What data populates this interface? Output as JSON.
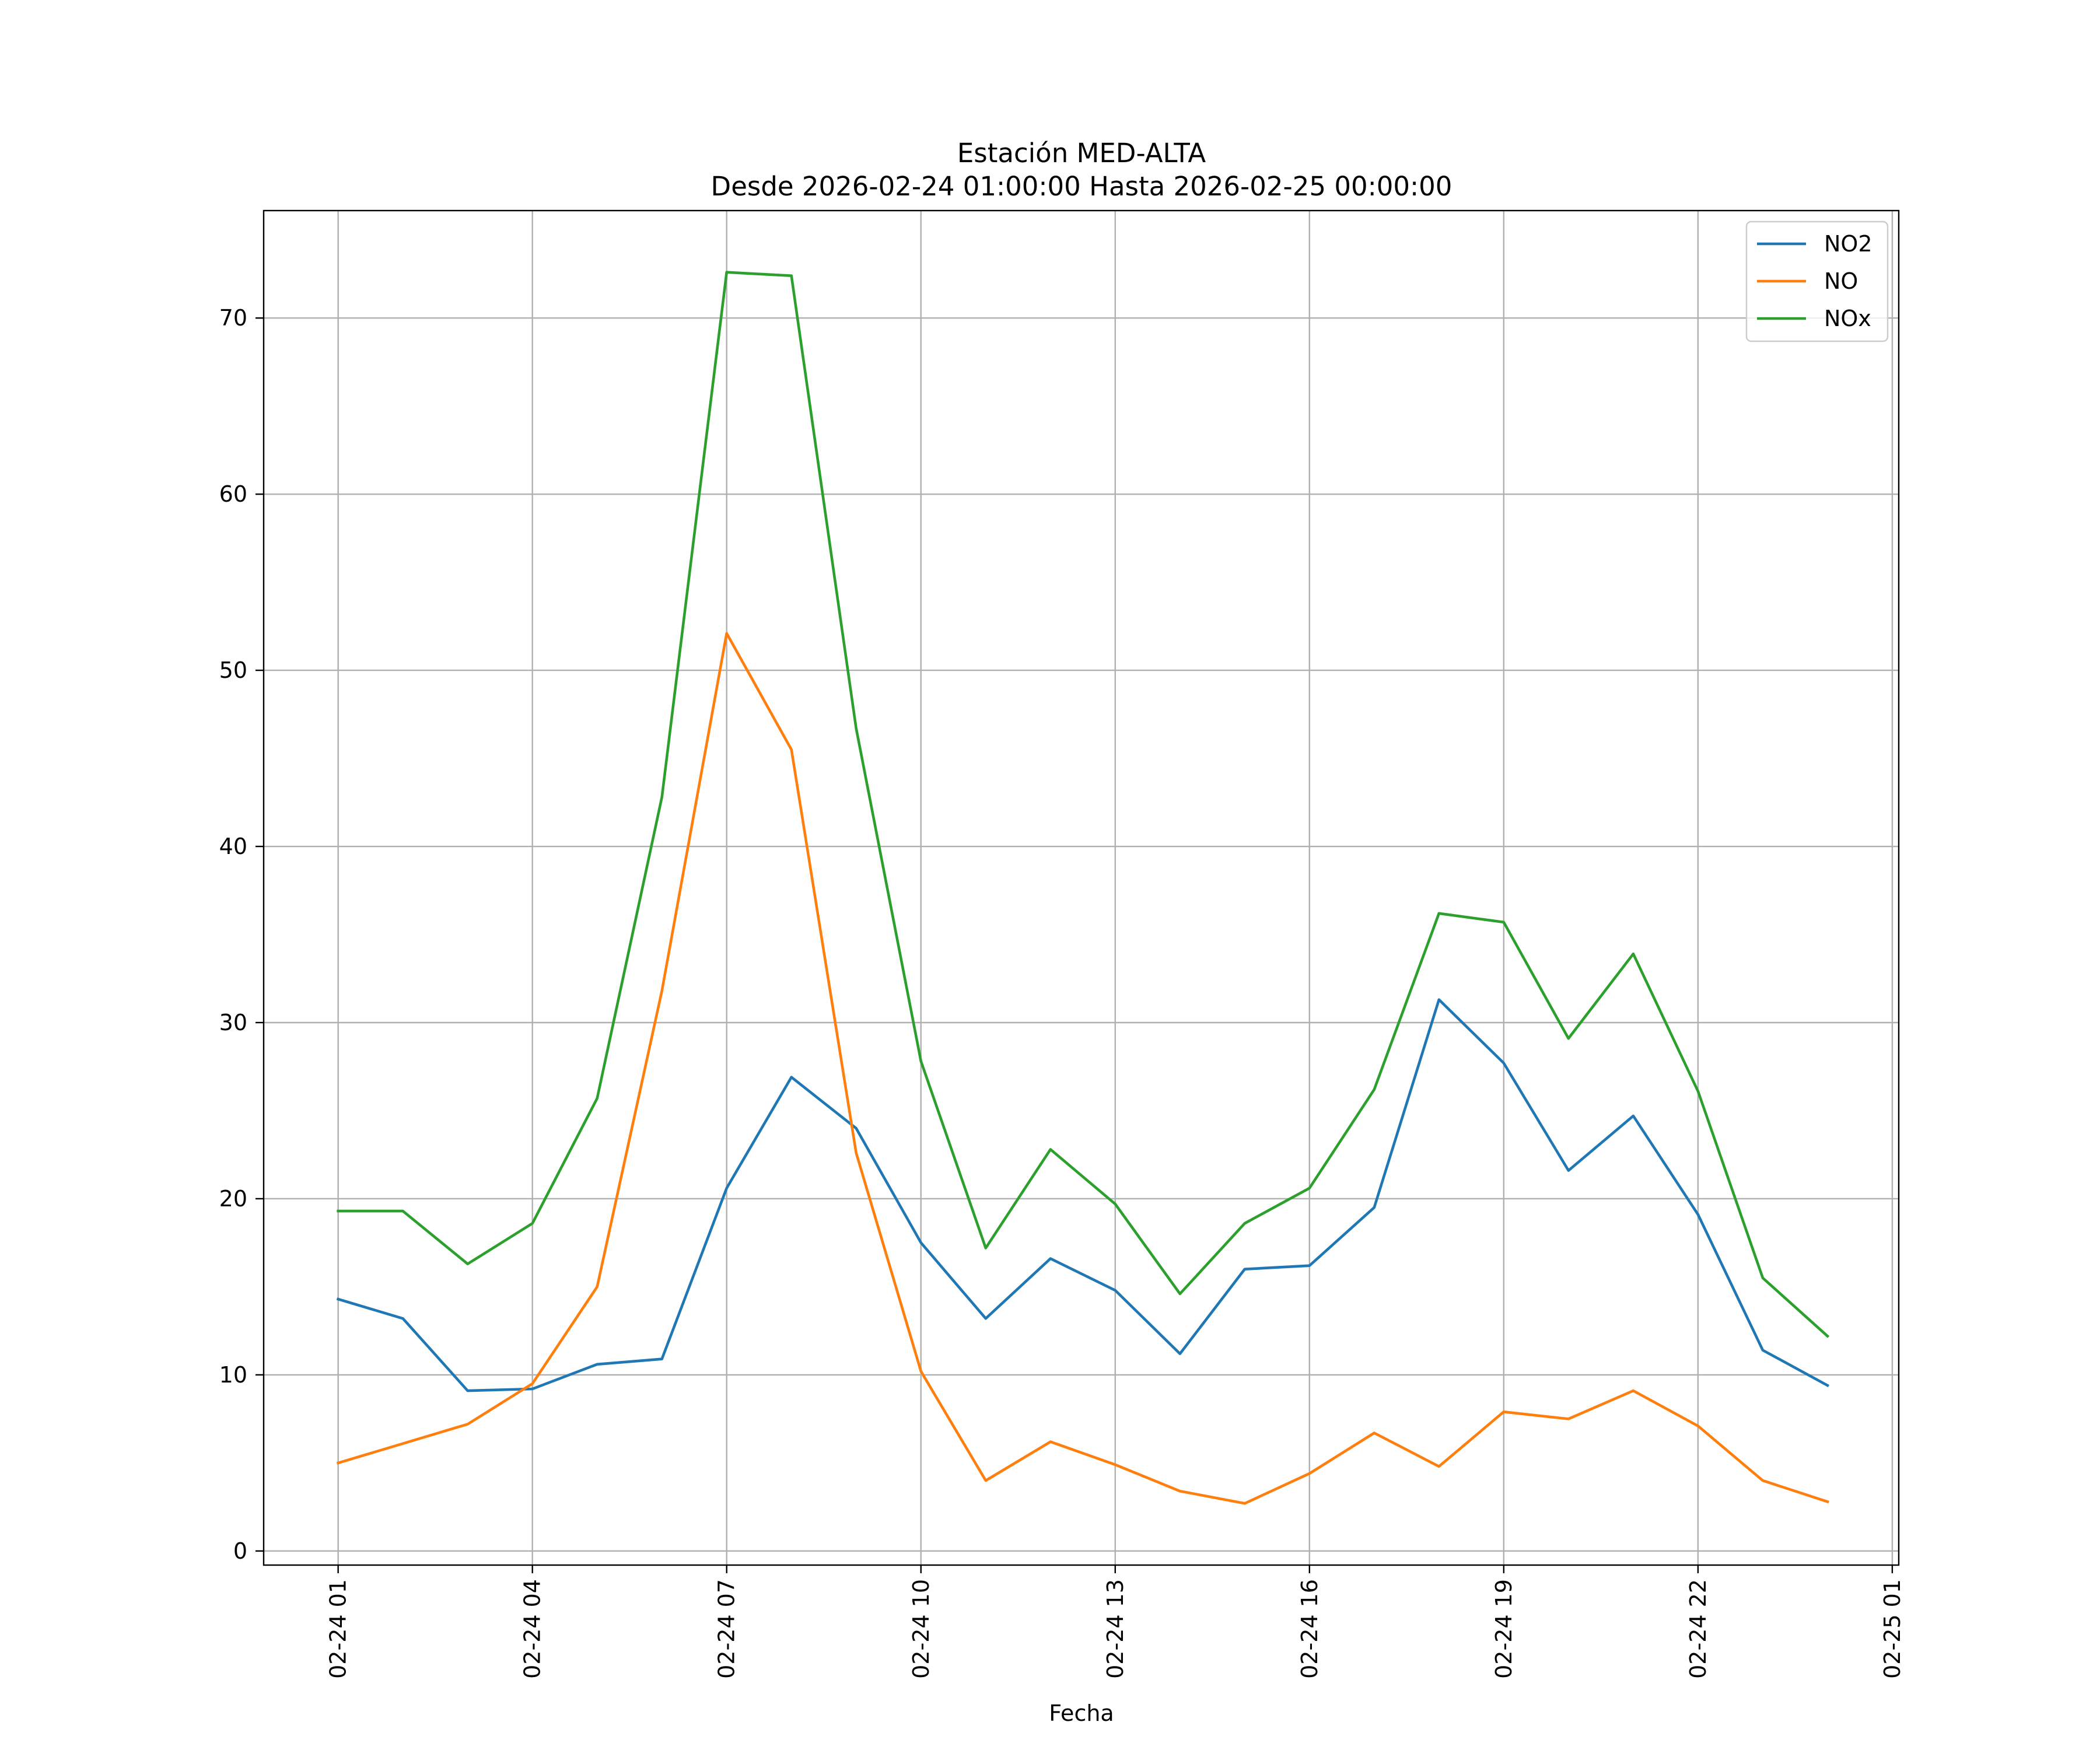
{
  "chart_data": {
    "type": "line",
    "title": "Estación MED-ALTA",
    "subtitle": "Desde 2026-02-24 01:00:00 Hasta 2026-02-25 00:00:00",
    "xlabel": "Fecha",
    "ylabel": "",
    "x": [
      "02-24 01",
      "02-24 02",
      "02-24 03",
      "02-24 04",
      "02-24 05",
      "02-24 06",
      "02-24 07",
      "02-24 08",
      "02-24 09",
      "02-24 10",
      "02-24 11",
      "02-24 12",
      "02-24 13",
      "02-24 14",
      "02-24 15",
      "02-24 16",
      "02-24 17",
      "02-24 18",
      "02-24 19",
      "02-24 20",
      "02-24 21",
      "02-24 22",
      "02-24 23",
      "02-25 00"
    ],
    "x_hours": [
      0,
      1,
      2,
      3,
      4,
      5,
      6,
      7,
      8,
      9,
      10,
      11,
      12,
      13,
      14,
      15,
      16,
      17,
      18,
      19,
      20,
      21,
      22,
      23
    ],
    "xlim_hours": [
      -1.15,
      24.1
    ],
    "xticks": [
      {
        "label": "02-24 01",
        "hour": 0
      },
      {
        "label": "02-24 04",
        "hour": 3
      },
      {
        "label": "02-24 07",
        "hour": 6
      },
      {
        "label": "02-24 10",
        "hour": 9
      },
      {
        "label": "02-24 13",
        "hour": 12
      },
      {
        "label": "02-24 16",
        "hour": 15
      },
      {
        "label": "02-24 19",
        "hour": 18
      },
      {
        "label": "02-24 22",
        "hour": 21
      },
      {
        "label": "02-25 01",
        "hour": 24
      }
    ],
    "ylim": [
      -0.8,
      76.1
    ],
    "yticks": [
      0,
      10,
      20,
      30,
      40,
      50,
      60,
      70
    ],
    "grid": true,
    "legend_position": "top-right",
    "series": [
      {
        "name": "NO2",
        "color": "#1f77b4",
        "values": [
          14.3,
          13.2,
          9.1,
          9.2,
          10.6,
          10.9,
          20.6,
          26.9,
          24.0,
          17.5,
          13.2,
          16.6,
          14.8,
          11.2,
          16.0,
          16.2,
          19.5,
          31.3,
          27.7,
          21.6,
          24.7,
          19.1,
          11.4,
          9.4
        ]
      },
      {
        "name": "NO",
        "color": "#ff7f0e",
        "values": [
          5.0,
          6.1,
          7.2,
          9.5,
          15.0,
          31.8,
          52.1,
          45.5,
          22.6,
          10.2,
          4.0,
          6.2,
          4.9,
          3.4,
          2.7,
          4.4,
          6.7,
          4.8,
          7.9,
          7.5,
          9.1,
          7.1,
          4.0,
          2.8
        ]
      },
      {
        "name": "NOx",
        "color": "#2ca02c",
        "values": [
          19.3,
          19.3,
          16.3,
          18.6,
          25.7,
          42.8,
          72.6,
          72.4,
          46.7,
          27.8,
          17.2,
          22.8,
          19.7,
          14.6,
          18.6,
          20.6,
          26.2,
          36.2,
          35.7,
          29.1,
          33.9,
          26.1,
          15.5,
          12.2
        ]
      }
    ]
  }
}
